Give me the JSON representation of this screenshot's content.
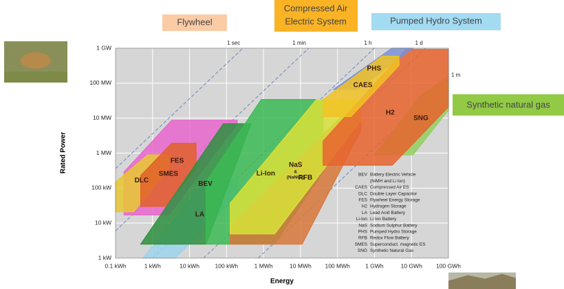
{
  "chart_data": {
    "type": "region",
    "xlabel": "Energy",
    "ylabel": "Rated Power",
    "log_x": true,
    "log_y": true,
    "grid": true,
    "xlim": [
      0.1,
      100000000
    ],
    "xticks": [
      {
        "value": 0.1,
        "label": "0.1 kWh"
      },
      {
        "value": 1,
        "label": "1 kWh"
      },
      {
        "value": 10,
        "label": "10 kWh"
      },
      {
        "value": 100,
        "label": "100 kWh"
      },
      {
        "value": 1000,
        "label": "1 MWh"
      },
      {
        "value": 10000,
        "label": "10 MWh"
      },
      {
        "value": 100000,
        "label": "100 MWh"
      },
      {
        "value": 1000000,
        "label": "1 GWh"
      },
      {
        "value": 10000000,
        "label": "10 GWh"
      },
      {
        "value": 100000000,
        "label": "100 GWh"
      }
    ],
    "ylim": [
      1,
      1000000
    ],
    "yticks": [
      {
        "value": 1,
        "label": "1 kW"
      },
      {
        "value": 10,
        "label": "10 kW"
      },
      {
        "value": 100,
        "label": "100 kW"
      },
      {
        "value": 1000,
        "label": "1 MW"
      },
      {
        "value": 10000,
        "label": "10 MW"
      },
      {
        "value": 100000,
        "label": "100 MW"
      },
      {
        "value": 1000000,
        "label": "1 GW"
      }
    ],
    "time_lines": [
      {
        "label": "1 sec",
        "duration_h": 0.000278
      },
      {
        "label": "1 min",
        "duration_h": 0.0167
      },
      {
        "label": "1 h",
        "duration_h": 1
      },
      {
        "label": "1 d",
        "duration_h": 24
      },
      {
        "label": "1 m",
        "duration_h": 720
      }
    ],
    "regions": [
      {
        "name": "FES",
        "color": "#e866cc",
        "x": [
          0.17,
          2.7,
          195,
          195,
          3.3,
          0.17
        ],
        "y": [
          17,
          17,
          6900,
          8700,
          8700,
          290
        ]
      },
      {
        "name": "DLC",
        "color": "#e8c830",
        "x": [
          0.1,
          0.31,
          2.7,
          2.7,
          0.74,
          0.1
        ],
        "y": [
          21,
          21,
          360,
          890,
          890,
          150
        ]
      },
      {
        "name": "SMES",
        "color": "#e0602a",
        "x": [
          0.48,
          2.2,
          15,
          15,
          3.3,
          0.48
        ],
        "y": [
          30,
          30,
          360,
          1900,
          1900,
          230
        ]
      },
      {
        "name": "LA",
        "color": "#9dd4ec",
        "x": [
          0.55,
          4.1,
          195,
          195,
          28
        ],
        "y": [
          1,
          1,
          59,
          170,
          170
        ]
      },
      {
        "name": "BEV",
        "color": "#2e8f40",
        "x": [
          0.48,
          28,
          460,
          82
        ],
        "y": [
          2.5,
          2.5,
          6900,
          6900
        ]
      },
      {
        "name": "Li-Ion",
        "color": "#3cba55",
        "x": [
          28,
          2000,
          41000,
          41000,
          870,
          28
        ],
        "y": [
          2.5,
          2.5,
          290,
          34000,
          34000,
          150
        ]
      },
      {
        "name": "RFB",
        "color": "#d8783a",
        "x": [
          126,
          11000,
          430000,
          430000,
          190000,
          126
        ],
        "y": [
          2.5,
          2.5,
          4400,
          17000,
          17000,
          7.7
        ]
      },
      {
        "name": "NaS",
        "sublabel": [
          "&",
          "(NaNiCl)"
        ],
        "color": "#d8e23a",
        "x": [
          126,
          2000,
          430000,
          430000,
          27000,
          126
        ],
        "y": [
          4.9,
          4.9,
          8700,
          34000,
          34000,
          37
        ]
      },
      {
        "name": "SNG",
        "color": "#90d060",
        "x": [
          1000000,
          11000000,
          100000000,
          100000000,
          17000000
        ],
        "y": [
          890,
          890,
          17000,
          160000,
          42000
        ]
      },
      {
        "name": "H2",
        "color": "#e8642e",
        "x": [
          41000,
          3000000,
          100000000,
          100000000,
          7000000,
          41000
        ],
        "y": [
          450,
          450,
          21000,
          920000,
          920000,
          2200
        ]
      },
      {
        "name": "PHS",
        "color": "#7a92d8",
        "x": [
          78000,
          350000,
          11000000,
          3000000
        ],
        "y": [
          66000,
          66000,
          1000000,
          1000000
        ]
      },
      {
        "name": "CAES",
        "color": "#f2c224",
        "x": [
          41000,
          230000,
          4600000,
          4600000,
          1600000,
          41000
        ],
        "y": [
          11000,
          11000,
          320000,
          590000,
          590000,
          34000
        ]
      }
    ],
    "legend_entries": [
      {
        "abbr": "BEV",
        "lines": [
          "Battery Electric Vehicle",
          "(NiMH and Li Ion)"
        ]
      },
      {
        "abbr": "CAES",
        "lines": [
          "Compressed Air ES"
        ]
      },
      {
        "abbr": "DLC",
        "lines": [
          "Double Layer Capacitor"
        ]
      },
      {
        "abbr": "FES",
        "lines": [
          "Flywheel Energy Storage"
        ]
      },
      {
        "abbr": "H2",
        "lines": [
          "Hydrogen Storage"
        ]
      },
      {
        "abbr": "LA",
        "lines": [
          "Lead Acid Battery"
        ]
      },
      {
        "abbr": "Li-Ion",
        "lines": [
          "Li Ion Battery"
        ]
      },
      {
        "abbr": "NaS",
        "lines": [
          "Sodium Sulphur Battery"
        ]
      },
      {
        "abbr": "PHS",
        "lines": [
          "Pumped Hydro Storage"
        ]
      },
      {
        "abbr": "RFB",
        "lines": [
          "Redox Flow Battery"
        ]
      },
      {
        "abbr": "SMES",
        "lines": [
          "Superconduct. magnetic ES"
        ]
      },
      {
        "abbr": "SNG",
        "lines": [
          "Synthetic Natural Gas"
        ]
      }
    ]
  },
  "callouts": [
    {
      "lines": [
        "Flywheel"
      ]
    },
    {
      "lines": [
        "Compressed Air",
        "Electric System"
      ]
    },
    {
      "lines": [
        "Pumped Hydro System"
      ]
    },
    {
      "lines": [
        "Synthetic natural gas"
      ]
    }
  ]
}
